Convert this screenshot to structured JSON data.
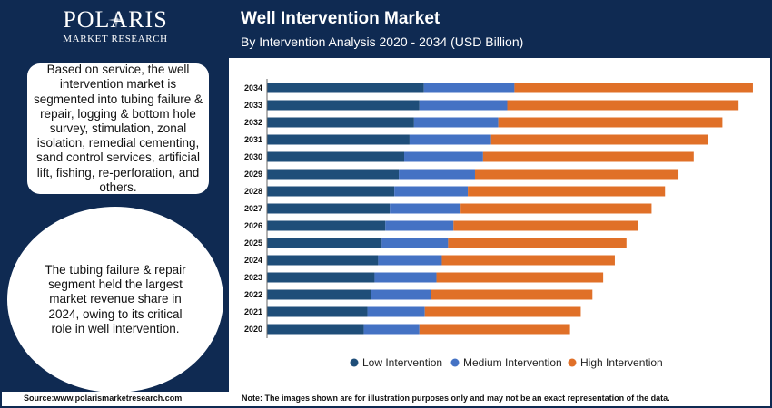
{
  "brand": {
    "name": "POLARIS",
    "sub": "MARKET RESEARCH"
  },
  "header": {
    "title": "Well Intervention Market",
    "subtitle": "By Intervention Analysis 2020 - 2034 (USD Billion)"
  },
  "sidebar": {
    "service_text": "Based on service, the well intervention market is segmented into tubing failure & repair, logging & bottom hole survey, stimulation, zonal isolation, remedial cementing, sand control services, artificial lift, fishing, re-perforation, and others.",
    "segment_text": "The tubing failure & repair segment held the largest market revenue share in 2024, owing to its critical role in well intervention."
  },
  "footer": {
    "source": "Source:www.polarismarketresearch.com",
    "note": "Note: The images shown are for illustration purposes only and may not be an exact representation of the data."
  },
  "colors": {
    "navy": "#0f2a52",
    "low": "#1f4e79",
    "medium": "#4472c4",
    "high": "#e07028"
  },
  "chart_data": {
    "type": "bar",
    "orientation": "horizontal",
    "stacked": true,
    "categories": [
      "2034",
      "2033",
      "2032",
      "2031",
      "2030",
      "2029",
      "2028",
      "2027",
      "2026",
      "2025",
      "2024",
      "2023",
      "2022",
      "2021",
      "2020"
    ],
    "series": [
      {
        "name": "Low Intervention",
        "color": "#1f4e79",
        "values": [
          17.5,
          17.0,
          16.4,
          15.9,
          15.3,
          14.7,
          14.2,
          13.7,
          13.2,
          12.8,
          12.4,
          12.0,
          11.6,
          11.2,
          10.8
        ]
      },
      {
        "name": "Medium Intervention",
        "color": "#4472c4",
        "values": [
          10.1,
          9.8,
          9.4,
          9.1,
          8.8,
          8.5,
          8.2,
          7.9,
          7.6,
          7.4,
          7.1,
          6.9,
          6.7,
          6.4,
          6.2
        ]
      },
      {
        "name": "High Intervention",
        "color": "#e07028",
        "values": [
          26.6,
          25.8,
          25.0,
          24.2,
          23.5,
          22.7,
          22.0,
          21.3,
          20.6,
          19.9,
          19.3,
          18.6,
          18.0,
          17.4,
          16.8
        ]
      }
    ],
    "legend_position": "bottom",
    "grid": false,
    "x_axis_visible": false
  }
}
